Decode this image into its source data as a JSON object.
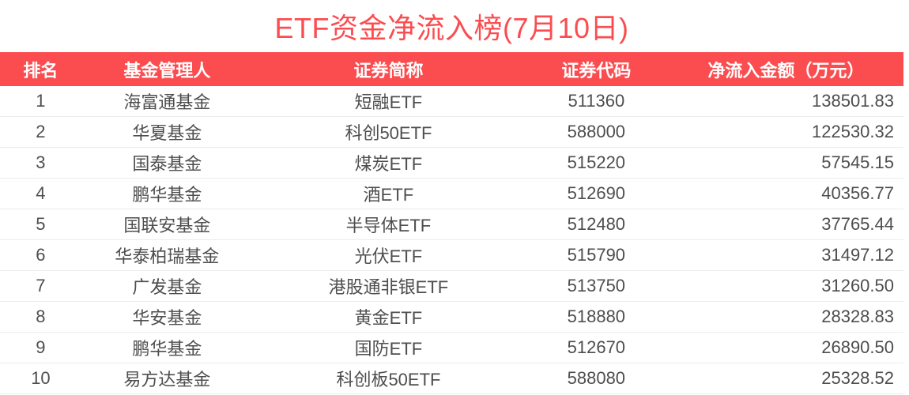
{
  "page": {
    "title": "ETF资金净流入榜(7月10日)"
  },
  "colors": {
    "accent_red": "#FB4D50",
    "header_bg": "#FB4D50",
    "header_text": "#FFFFFF",
    "body_text": "#4E4E4E",
    "divider": "#E9EBEF",
    "row_bg": "#FFFFFF"
  },
  "chart_data": {
    "type": "table",
    "title": "ETF资金净流入榜(7月10日)",
    "columns": [
      "排名",
      "基金管理人",
      "证券简称",
      "证券代码",
      "净流入金额（万元）"
    ],
    "rows": [
      [
        "1",
        "海富通基金",
        "短融ETF",
        "511360",
        "138501.83"
      ],
      [
        "2",
        "华夏基金",
        "科创50ETF",
        "588000",
        "122530.32"
      ],
      [
        "3",
        "国泰基金",
        "煤炭ETF",
        "515220",
        "57545.15"
      ],
      [
        "4",
        "鹏华基金",
        "酒ETF",
        "512690",
        "40356.77"
      ],
      [
        "5",
        "国联安基金",
        "半导体ETF",
        "512480",
        "37765.44"
      ],
      [
        "6",
        "华泰柏瑞基金",
        "光伏ETF",
        "515790",
        "31497.12"
      ],
      [
        "7",
        "广发基金",
        "港股通非银ETF",
        "513750",
        "31260.50"
      ],
      [
        "8",
        "华安基金",
        "黄金ETF",
        "518880",
        "28328.83"
      ],
      [
        "9",
        "鹏华基金",
        "国防ETF",
        "512670",
        "26890.50"
      ],
      [
        "10",
        "易方达基金",
        "科创板50ETF",
        "588080",
        "25328.52"
      ]
    ]
  }
}
